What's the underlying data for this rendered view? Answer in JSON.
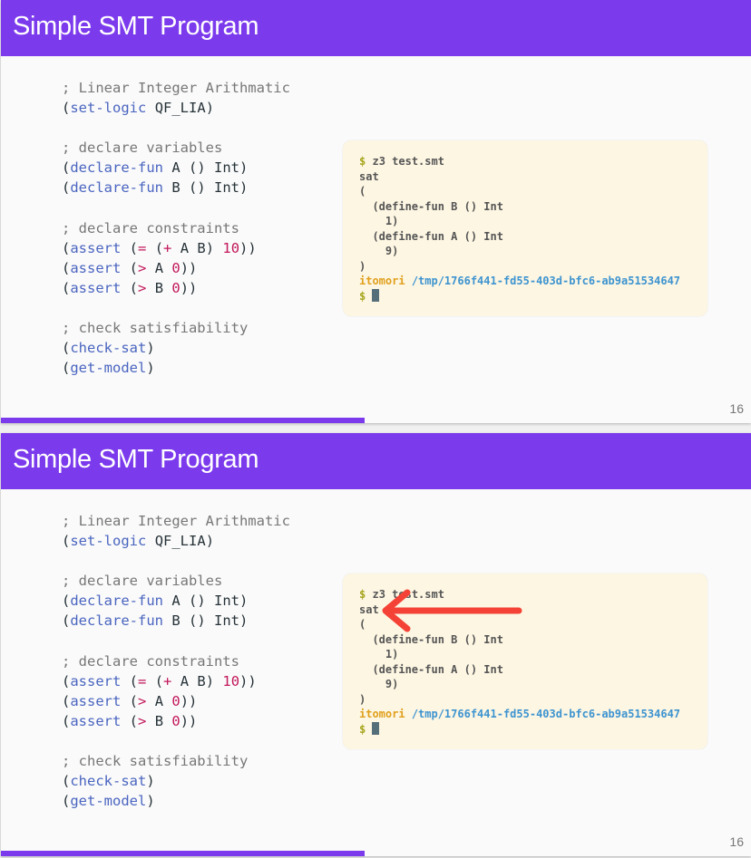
{
  "accent": "#7c3aed",
  "slides": [
    {
      "title": "Simple SMT Program",
      "page_number": "16",
      "progress_percent": 48.5,
      "has_arrow": false
    },
    {
      "title": "Simple SMT Program",
      "page_number": "16",
      "progress_percent": 48.5,
      "has_arrow": true,
      "arrow_color": "#f44336"
    }
  ],
  "code": {
    "c1": "; Linear Integer Arithmatic",
    "setlogic": "set-logic",
    "logic": "QF_LIA",
    "c2": "; declare variables",
    "declarefun": "declare-fun",
    "c3": "; declare constraints",
    "assert": "assert",
    "c4": "; check satisfiability",
    "checksat": "check-sat",
    "getmodel": "get-model"
  },
  "terminal": {
    "prompt": "$",
    "command": "z3 test.smt",
    "output": [
      "sat",
      "(",
      "  (define-fun B () Int",
      "    1)",
      "  (define-fun A () Int",
      "    9)",
      ")"
    ],
    "user": "itomori",
    "path": "/tmp/1766f441-fd55-403d-bfc6-ab9a51534647"
  }
}
